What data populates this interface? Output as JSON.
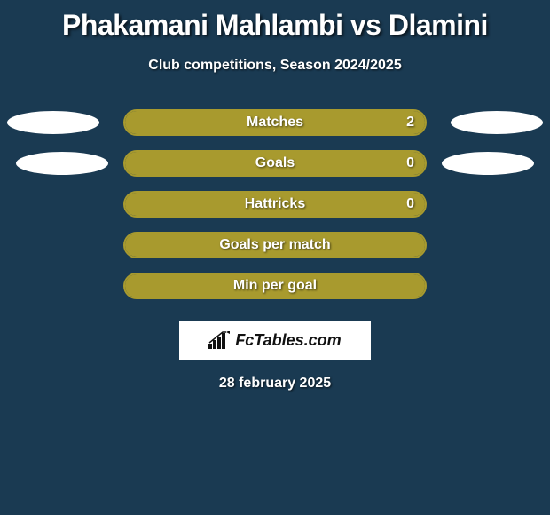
{
  "title": "Phakamani Mahlambi vs Dlamini",
  "subtitle": "Club competitions, Season 2024/2025",
  "date": "28 february 2025",
  "brand": "FcTables.com",
  "colors": {
    "background": "#1a3a52",
    "bar_fill": "#a89a2e",
    "bar_border": "#a89a2e",
    "pill": "#ffffff",
    "text": "#ffffff"
  },
  "rows": [
    {
      "label": "Matches",
      "value": "2",
      "fill_pct": 100,
      "show_value": true,
      "show_pills": true,
      "pill_indent": false
    },
    {
      "label": "Goals",
      "value": "0",
      "fill_pct": 100,
      "show_value": true,
      "show_pills": true,
      "pill_indent": true
    },
    {
      "label": "Hattricks",
      "value": "0",
      "fill_pct": 100,
      "show_value": true,
      "show_pills": false,
      "pill_indent": false
    },
    {
      "label": "Goals per match",
      "value": "",
      "fill_pct": 100,
      "show_value": false,
      "show_pills": false,
      "pill_indent": false
    },
    {
      "label": "Min per goal",
      "value": "",
      "fill_pct": 100,
      "show_value": false,
      "show_pills": false,
      "pill_indent": false
    }
  ]
}
